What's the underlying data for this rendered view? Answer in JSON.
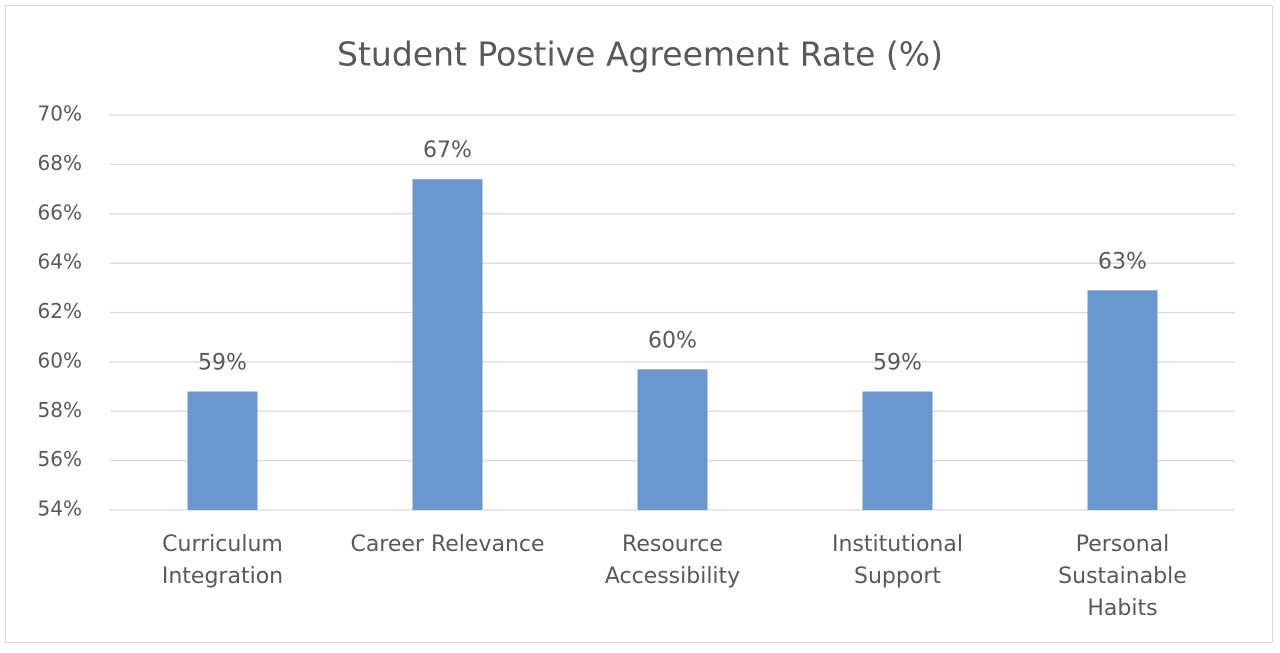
{
  "chart_data": {
    "type": "bar",
    "title": "Student Postive Agreement Rate (%)",
    "categories": [
      "Curriculum\nIntegration",
      "Career Relevance",
      "Resource\nAccessibility",
      "Institutional\nSupport",
      "Personal\nSustainable\nHabits"
    ],
    "values": [
      58.8,
      67.4,
      59.7,
      58.8,
      62.9
    ],
    "value_labels": [
      "59%",
      "67%",
      "60%",
      "59%",
      "63%"
    ],
    "color": "#6a98ce",
    "ylim": [
      54,
      70
    ],
    "yticks": [
      {
        "value": 54,
        "label": "54%"
      },
      {
        "value": 56,
        "label": "56%"
      },
      {
        "value": 58,
        "label": "58%"
      },
      {
        "value": 60,
        "label": "60%"
      },
      {
        "value": 62,
        "label": "62%"
      },
      {
        "value": 64,
        "label": "64%"
      },
      {
        "value": 66,
        "label": "66%"
      },
      {
        "value": 68,
        "label": "68%"
      },
      {
        "value": 70,
        "label": "70%"
      }
    ],
    "grid": true
  }
}
